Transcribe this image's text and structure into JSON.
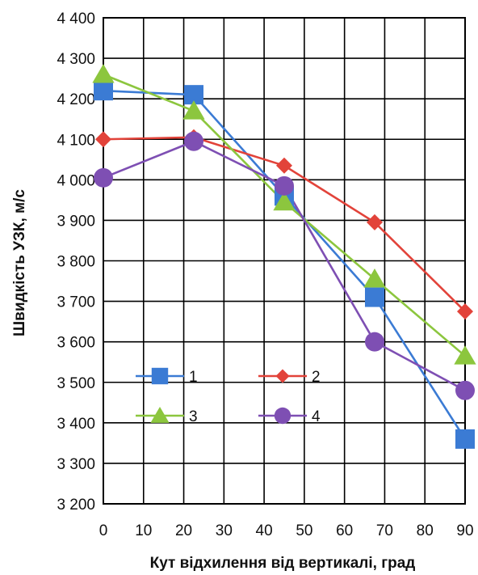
{
  "chart_data": {
    "type": "line",
    "title": "",
    "xlabel": "Кут відхилення від вертикалі, град",
    "ylabel": "Швидкість УЗК, м/с",
    "xlim": [
      0,
      90
    ],
    "ylim": [
      3200,
      4400
    ],
    "x_ticks": [
      0,
      10,
      20,
      30,
      40,
      50,
      60,
      70,
      80,
      90
    ],
    "x_tick_labels": [
      "0",
      "10",
      "20",
      "30",
      "40",
      "50",
      "60",
      "70",
      "80",
      "90"
    ],
    "y_ticks": [
      3200,
      3300,
      3400,
      3500,
      3600,
      3700,
      3800,
      3900,
      4000,
      4100,
      4200,
      4300,
      4400
    ],
    "y_tick_labels": [
      "3 200",
      "3 300",
      "3 400",
      "3 500",
      "3 600",
      "3 700",
      "3 800",
      "3 900",
      "4 000",
      "4 100",
      "4 200",
      "4 300",
      "4 400"
    ],
    "grid": true,
    "legend_position": "lower-center",
    "x": [
      0,
      22.5,
      45,
      67.5,
      90
    ],
    "series": [
      {
        "name": "1",
        "values": [
          4220,
          4210,
          3960,
          3710,
          3360
        ],
        "color": "#3b7bd4",
        "marker": "square"
      },
      {
        "name": "2",
        "values": [
          4100,
          4105,
          4035,
          3895,
          3675
        ],
        "color": "#e2433a",
        "marker": "diamond"
      },
      {
        "name": "3",
        "values": [
          4260,
          4170,
          3945,
          3755,
          3565
        ],
        "color": "#8cc63e",
        "marker": "triangle"
      },
      {
        "name": "4",
        "values": [
          4005,
          4095,
          3985,
          3600,
          3480
        ],
        "color": "#7e4fb3",
        "marker": "circle"
      }
    ]
  }
}
